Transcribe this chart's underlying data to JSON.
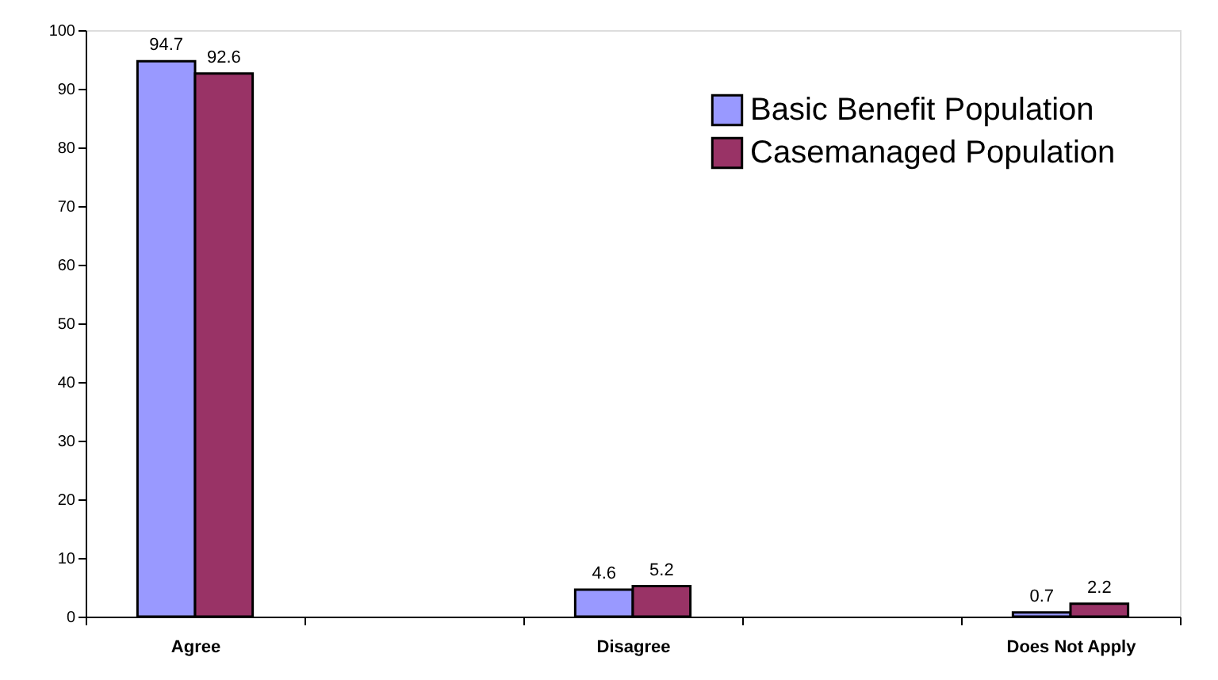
{
  "chart_data": {
    "type": "bar",
    "categories": [
      "Agree",
      null,
      "Disagree",
      null,
      "Does Not Apply"
    ],
    "series": [
      {
        "name": "Basic Benefit Population",
        "color": "#9999ff",
        "values": [
          94.7,
          null,
          4.6,
          null,
          0.7
        ]
      },
      {
        "name": "Casemanaged Population",
        "color": "#993366",
        "values": [
          92.6,
          null,
          5.2,
          null,
          2.2
        ]
      }
    ],
    "ylim": [
      0,
      100
    ],
    "yticks": [
      0,
      10,
      20,
      30,
      40,
      50,
      60,
      70,
      80,
      90,
      100
    ],
    "data_labels": true,
    "grid": false,
    "legend": "top right"
  }
}
